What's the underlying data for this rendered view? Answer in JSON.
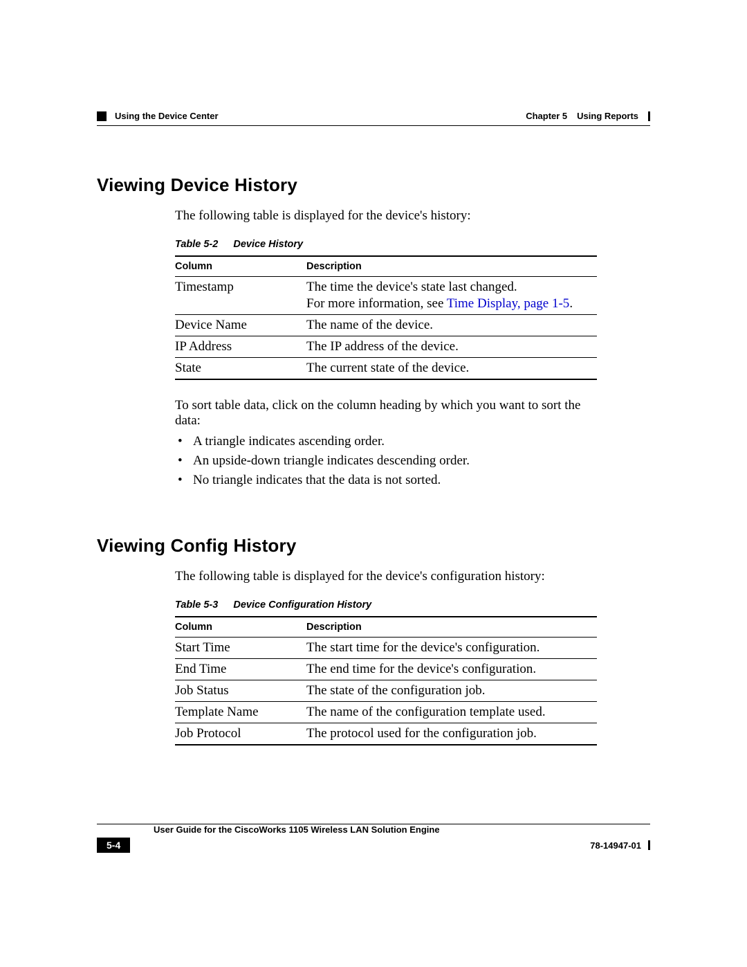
{
  "header": {
    "chapter_label": "Chapter 5",
    "chapter_title": "Using Reports",
    "section_crumb": "Using the Device Center"
  },
  "section1": {
    "heading": "Viewing Device History",
    "intro": "The following table is displayed for the device's history:",
    "table_caption_num": "Table 5-2",
    "table_caption_title": "Device History",
    "columns": [
      "Column",
      "Description"
    ],
    "rows": [
      {
        "col": "Timestamp",
        "desc_pre": "The time the device's state last changed.",
        "desc_more_prefix": "For more information, see ",
        "desc_link": "Time Display, page 1-5",
        "desc_suffix": "."
      },
      {
        "col": "Device Name",
        "desc": "The name of the device."
      },
      {
        "col": "IP Address",
        "desc": "The IP address of the device."
      },
      {
        "col": "State",
        "desc": "The current state of the device."
      }
    ],
    "sort_note": "To sort table data, click on the column heading by which you want to sort the data:",
    "bullets": [
      "A triangle indicates ascending order.",
      "An upside-down triangle indicates descending order.",
      "No triangle indicates that the data is not sorted."
    ]
  },
  "section2": {
    "heading": "Viewing Config History",
    "intro": "The following table is displayed for the device's configuration history:",
    "table_caption_num": "Table 5-3",
    "table_caption_title": "Device Configuration History",
    "columns": [
      "Column",
      "Description"
    ],
    "rows": [
      {
        "col": "Start Time",
        "desc": "The start time for the device's configuration."
      },
      {
        "col": "End Time",
        "desc": "The end time for the device's configuration."
      },
      {
        "col": "Job Status",
        "desc": "The state of the configuration job."
      },
      {
        "col": "Template Name",
        "desc": "The name of the configuration template used."
      },
      {
        "col": "Job Protocol",
        "desc": "The protocol used for the configuration job."
      }
    ]
  },
  "footer": {
    "guide_title": "User Guide for the CiscoWorks 1105 Wireless LAN Solution Engine",
    "page_num": "5-4",
    "doc_num": "78-14947-01"
  },
  "colors": {
    "link": "#0000cc",
    "text": "#000000",
    "background": "#ffffff"
  }
}
